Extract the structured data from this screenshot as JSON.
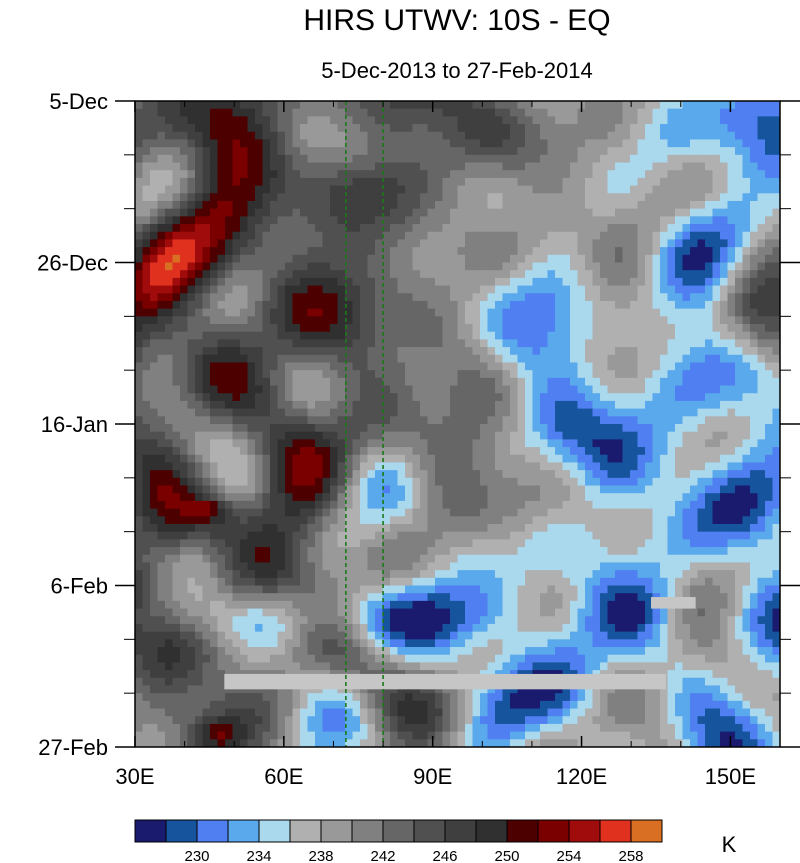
{
  "chart_data": {
    "type": "heatmap",
    "title": "HIRS UTWV: 10S - EQ",
    "subtitle": "5-Dec-2013 to 27-Feb-2014",
    "xlabel": "",
    "ylabel": "",
    "x_range": [
      30,
      160
    ],
    "y_range_days": [
      0,
      84
    ],
    "x_ticks": [
      {
        "value": 30,
        "label": "30E"
      },
      {
        "value": 60,
        "label": "60E"
      },
      {
        "value": 90,
        "label": "90E"
      },
      {
        "value": 120,
        "label": "120E"
      },
      {
        "value": 150,
        "label": "150E"
      }
    ],
    "y_ticks": [
      {
        "day": 0,
        "label": "5-Dec"
      },
      {
        "day": 21,
        "label": "26-Dec"
      },
      {
        "day": 42,
        "label": "16-Jan"
      },
      {
        "day": 63,
        "label": "6-Feb"
      },
      {
        "day": 84,
        "label": "27-Feb"
      }
    ],
    "reference_lines_lon": [
      72.5,
      80
    ],
    "colorbar": {
      "unit": "K",
      "colors": [
        "#1a1a6e",
        "#17549e",
        "#4f7ff0",
        "#5aa9ec",
        "#aad8ec",
        "#b0b0b0",
        "#999999",
        "#808080",
        "#666666",
        "#505050",
        "#3f3f3f",
        "#303030",
        "#4d0000",
        "#7a0000",
        "#a00c0c",
        "#e0301e",
        "#d86f23"
      ],
      "levels": [
        228,
        230,
        232,
        234,
        236,
        238,
        240,
        242,
        244,
        246,
        248,
        250,
        252,
        254,
        256,
        258
      ],
      "labels": [
        "230",
        "234",
        "238",
        "242",
        "246",
        "250",
        "254",
        "258"
      ]
    },
    "field_summary": "Brightness temperature (K) by longitude and date; bluer = moister (lower K) over eastern Indian Ocean / Maritime Continent, darker grey = drier (higher K) west of ~80E; missing data bands near 27-Feb and 6-Feb.",
    "missing_bands": [
      {
        "lon": [
          48,
          137
        ],
        "day": [
          74.5,
          76.5
        ]
      },
      {
        "lon": [
          134,
          143
        ],
        "day": [
          64.5,
          66.0
        ]
      }
    ]
  }
}
